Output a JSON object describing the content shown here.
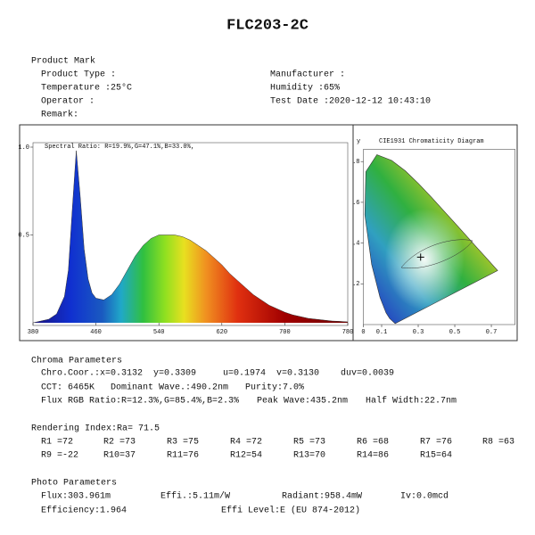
{
  "header": {
    "title": "FLC203-2C"
  },
  "product_mark": {
    "heading": "Product Mark",
    "left": [
      "Product Type :",
      "Temperature :25°C",
      "Operator :",
      "Remark:"
    ],
    "right": [
      "Manufacturer :",
      "Humidity :65%",
      "Test Date :2020-12-12 10:43:10"
    ]
  },
  "chart_data": [
    {
      "type": "line",
      "annotation": "Spectral Ratio: R=19.9%,G=47.1%,B=33.0%,",
      "x": [
        380,
        390,
        400,
        410,
        420,
        425,
        430,
        435,
        440,
        445,
        450,
        455,
        460,
        470,
        480,
        490,
        500,
        510,
        520,
        530,
        540,
        550,
        560,
        570,
        580,
        590,
        600,
        610,
        620,
        630,
        640,
        650,
        660,
        670,
        680,
        690,
        700,
        710,
        720,
        730,
        740,
        750,
        760,
        770,
        780
      ],
      "values": [
        0.0,
        0.01,
        0.02,
        0.05,
        0.15,
        0.3,
        0.65,
        0.98,
        0.72,
        0.42,
        0.25,
        0.17,
        0.14,
        0.13,
        0.16,
        0.22,
        0.3,
        0.38,
        0.44,
        0.48,
        0.5,
        0.5,
        0.5,
        0.49,
        0.47,
        0.44,
        0.41,
        0.37,
        0.33,
        0.28,
        0.24,
        0.2,
        0.16,
        0.13,
        0.1,
        0.08,
        0.06,
        0.045,
        0.035,
        0.025,
        0.02,
        0.015,
        0.01,
        0.008,
        0.005
      ],
      "xlim": [
        380,
        780
      ],
      "xticks": [
        380,
        460,
        540,
        620,
        700,
        780
      ],
      "ylim": [
        0,
        1
      ],
      "yticks": [
        {
          "value": 1,
          "label": "1.0"
        },
        0.5
      ]
    },
    {
      "type": "scatter",
      "title": "CIE1931 Chromaticity Diagram",
      "ylabel": "y",
      "point": {
        "x": 0.3132,
        "y": 0.3309
      },
      "xlim": [
        0,
        0.83
      ],
      "xticks": [
        0,
        0.1,
        0.3,
        0.5,
        0.7
      ],
      "ylim": [
        0,
        0.86
      ],
      "yticks": [
        {
          "value": 0.2,
          "label": ".2"
        },
        {
          "value": 0.4,
          "label": ".4"
        },
        {
          "value": 0.6,
          "label": ".6"
        },
        {
          "value": 0.8,
          "label": ".8"
        }
      ]
    }
  ],
  "chroma": {
    "heading": "Chroma Parameters",
    "line1": [
      "Chro.Coor.:x=0.3132",
      "y=0.3309",
      "u=0.1974",
      "v=0.3130",
      "duv=0.0039"
    ],
    "line2": [
      "CCT: 6465K",
      "Dominant Wave.:490.2nm",
      "Purity:7.0%"
    ],
    "line3": [
      "Flux RGB Ratio:R=12.3%,G=85.4%,B=2.3%",
      "Peak Wave:435.2nm",
      "Half Width:22.7nm"
    ]
  },
  "rendering": {
    "heading": "Rendering Index:Ra= 71.5",
    "row1": [
      "R1 =72",
      "R2 =73",
      "R3 =75",
      "R4 =72",
      "R5 =73",
      "R6 =68",
      "R7 =76",
      "R8 =63"
    ],
    "row2": [
      "R9 =-22",
      "R10=37",
      "R11=76",
      "R12=54",
      "R13=70",
      "R14=86",
      "R15=64"
    ]
  },
  "photo": {
    "heading": "Photo Parameters",
    "line1": [
      "Flux:303.961m",
      "Effi.:5.11m/W",
      "Radiant:958.4mW",
      "Iv:0.0mcd"
    ],
    "line2": [
      "Efficiency:1.964",
      "Effi Level:E (EU 874-2012)"
    ]
  }
}
